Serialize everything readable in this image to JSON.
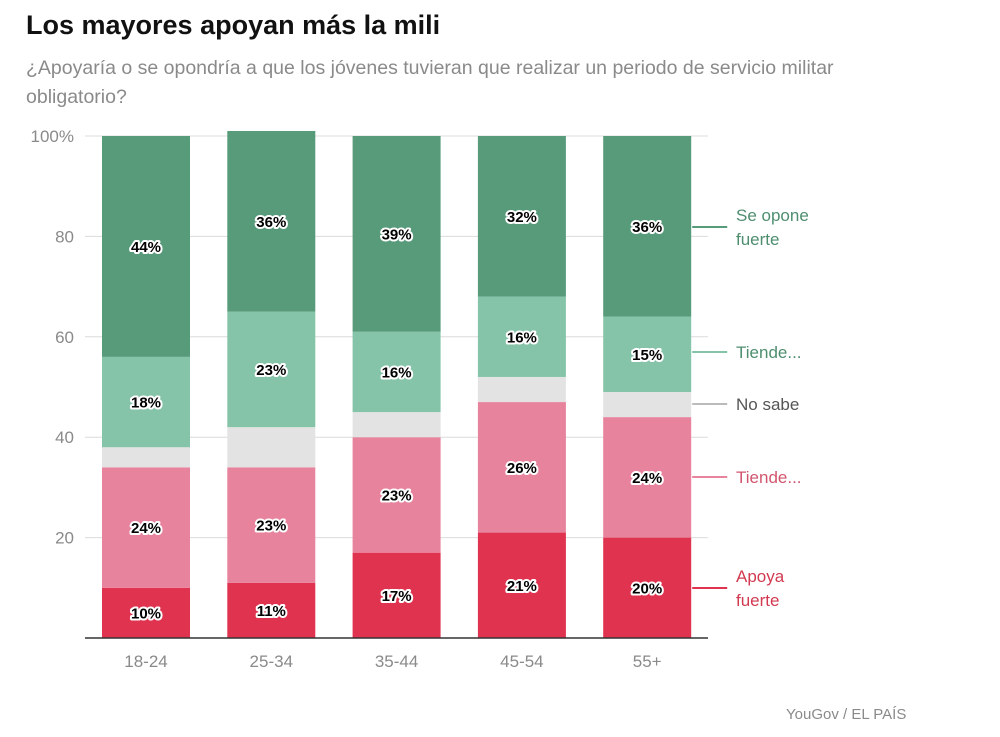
{
  "chart_data": {
    "type": "bar",
    "stacked": true,
    "title": "Los mayores apoyan más la mili",
    "subtitle": "¿Apoyaría o se opondría a que los jóvenes tuvieran que realizar un periodo de servicio militar obligatorio?",
    "source": "YouGov / EL PAÍS",
    "categories": [
      "18-24",
      "25-34",
      "35-44",
      "45-54",
      "55+"
    ],
    "ylim": [
      0,
      100
    ],
    "yticks": [
      {
        "value": 0,
        "label": ""
      },
      {
        "value": 20,
        "label": "20"
      },
      {
        "value": 40,
        "label": "40"
      },
      {
        "value": 60,
        "label": "60"
      },
      {
        "value": 80,
        "label": "80"
      },
      {
        "value": 100,
        "label": "100%"
      }
    ],
    "series": [
      {
        "name": "Apoya fuerte",
        "legend_lines": [
          "Apoya",
          "fuerte"
        ],
        "color": "#e0334f",
        "legend_color": "#d23a51",
        "values": [
          10,
          11,
          17,
          21,
          20
        ],
        "labels": [
          "10%",
          "11%",
          "17%",
          "21%",
          "20%"
        ]
      },
      {
        "name": "Tiende...",
        "legend_lines": [
          "Tiende..."
        ],
        "color": "#e8839d",
        "legend_color": "#d2556f",
        "values": [
          24,
          23,
          23,
          26,
          24
        ],
        "labels": [
          "24%",
          "23%",
          "23%",
          "26%",
          "24%"
        ]
      },
      {
        "name": "No sabe",
        "legend_lines": [
          "No sabe"
        ],
        "color": "#e3e3e3",
        "legend_color": "#555555",
        "values": [
          4,
          8,
          5,
          5,
          5
        ],
        "labels": [
          "",
          "",
          "",
          "",
          ""
        ]
      },
      {
        "name": "Tiende...",
        "legend_lines": [
          "Tiende..."
        ],
        "color": "#86c4a9",
        "legend_color": "#4e8e6f",
        "values": [
          18,
          23,
          16,
          16,
          15
        ],
        "labels": [
          "18%",
          "23%",
          "16%",
          "16%",
          "15%"
        ]
      },
      {
        "name": "Se opone fuerte",
        "legend_lines": [
          "Se opone",
          "fuerte"
        ],
        "color": "#589b7b",
        "legend_color": "#4e8e6f",
        "values": [
          44,
          36,
          39,
          32,
          36
        ],
        "labels": [
          "44%",
          "36%",
          "39%",
          "32%",
          "36%"
        ]
      }
    ]
  }
}
